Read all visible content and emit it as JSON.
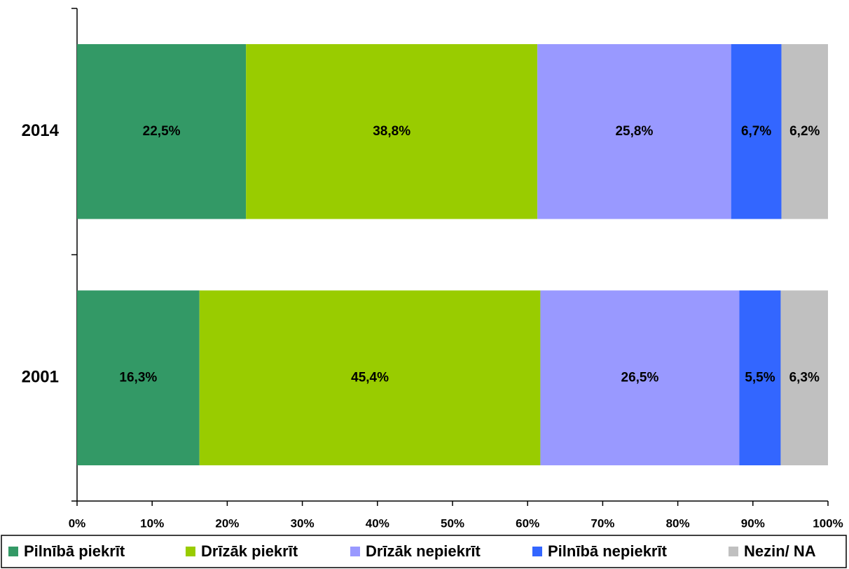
{
  "chart_data": {
    "type": "stacked-barh",
    "categories": [
      "2014",
      "2001"
    ],
    "series": [
      {
        "name": "Pilnībā piekrīt",
        "color": "#339966",
        "values": [
          22.5,
          16.3
        ],
        "value_labels": [
          "22,5%",
          "16,3%"
        ]
      },
      {
        "name": "Drīzāk piekrīt",
        "color": "#99cc00",
        "values": [
          38.8,
          45.4
        ],
        "value_labels": [
          "38,8%",
          "45,4%"
        ]
      },
      {
        "name": "Drīzāk nepiekrīt",
        "color": "#9999ff",
        "values": [
          25.8,
          26.5
        ],
        "value_labels": [
          "25,8%",
          "26,5%"
        ]
      },
      {
        "name": "Pilnībā nepiekrīt",
        "color": "#3366ff",
        "values": [
          6.7,
          5.5
        ],
        "value_labels": [
          "6,7%",
          "5,5%"
        ]
      },
      {
        "name": "Nezin/ NA",
        "color": "#c0c0c0",
        "values": [
          6.2,
          6.3
        ],
        "value_labels": [
          "6,2%",
          "6,3%"
        ]
      }
    ],
    "xlim": [
      0,
      100
    ],
    "xticks": [
      {
        "value": 0,
        "label": "0%"
      },
      {
        "value": 10,
        "label": "10%"
      },
      {
        "value": 20,
        "label": "20%"
      },
      {
        "value": 30,
        "label": "30%"
      },
      {
        "value": 40,
        "label": "40%"
      },
      {
        "value": 50,
        "label": "50%"
      },
      {
        "value": 60,
        "label": "60%"
      },
      {
        "value": 70,
        "label": "70%"
      },
      {
        "value": 80,
        "label": "80%"
      },
      {
        "value": 90,
        "label": "90%"
      },
      {
        "value": 100,
        "label": "100%"
      }
    ],
    "legend": "bottom"
  }
}
